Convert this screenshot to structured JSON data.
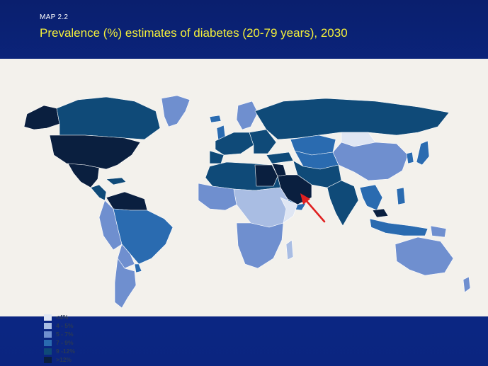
{
  "slide": {
    "label": "MAP 2.2",
    "title": "Prevalence (%) estimates of diabetes (20-79 years), 2030"
  },
  "colors": {
    "background": "#0b2580",
    "title": "#f3ef3a",
    "map_background": "#f3f1ec",
    "ocean_border": "#ffffff",
    "arrow": "#e02020"
  },
  "legend": [
    {
      "label": "<4%",
      "color": "#dfe6f3"
    },
    {
      "label": "4 - 5%",
      "color": "#a9bde3"
    },
    {
      "label": "5 - 7%",
      "color": "#6f8fcf"
    },
    {
      "label": "7 - 9%",
      "color": "#2a6bb0"
    },
    {
      "label": "9 -12%",
      "color": "#0f4a78"
    },
    {
      "label": ">12%",
      "color": "#0a1f3f"
    }
  ],
  "annotation": {
    "type": "arrow",
    "points_to": "Arabian Peninsula"
  }
}
